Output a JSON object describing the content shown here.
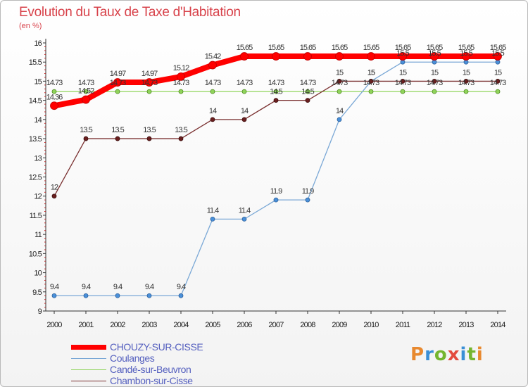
{
  "title": "Evolution du Taux de Taxe d'Habitation",
  "subtitle": "(en %)",
  "logo": {
    "letters": [
      "P",
      "r",
      "o",
      "x",
      "i",
      "t",
      "i"
    ],
    "colors": [
      "#e8892f",
      "#3a8fd6",
      "#74b52f",
      "#e34b3f",
      "#3a8fd6",
      "#74b52f",
      "#e8892f"
    ]
  },
  "chart_data": {
    "type": "line",
    "x": [
      "2000",
      "2001",
      "2002",
      "2003",
      "2004",
      "2005",
      "2006",
      "2007",
      "2008",
      "2009",
      "2010",
      "2011",
      "2012",
      "2013",
      "2014"
    ],
    "ylim": [
      9,
      16
    ],
    "yticks": [
      "9",
      "9.5",
      "10",
      "10.5",
      "11",
      "11.5",
      "12",
      "12.5",
      "13",
      "13.5",
      "14",
      "14.5",
      "15",
      "15.5",
      "16"
    ],
    "grid": false,
    "legend_position": "bottom-left",
    "series": [
      {
        "name": "CHOUZY-SUR-CISSE",
        "color": "#ff0000",
        "values": [
          14.36,
          14.52,
          14.97,
          14.97,
          15.12,
          15.42,
          15.65,
          15.65,
          15.65,
          15.65,
          15.65,
          15.65,
          15.65,
          15.65,
          15.65
        ],
        "labels": [
          "14.36",
          "14.52",
          "14.97",
          "14.97",
          "15.12",
          "15.42",
          "15.65",
          "15.65",
          "15.65",
          "15.65",
          "15.65",
          "15.65",
          "15.65",
          "15.65",
          "15.65"
        ]
      },
      {
        "name": "Coulanges",
        "color": "#7aa8d6",
        "values": [
          9.4,
          9.4,
          9.4,
          9.4,
          9.4,
          11.4,
          11.4,
          11.9,
          11.9,
          14,
          15,
          15.5,
          15.5,
          15.5,
          15.5
        ],
        "labels": [
          "9.4",
          "9.4",
          "9.4",
          "9.4",
          "9.4",
          "11.4",
          "11.4",
          "11.9",
          "11.9",
          "14",
          "15",
          "15.5",
          "15.5",
          "15.5",
          "15.5"
        ]
      },
      {
        "name": "Candé-sur-Beuvron",
        "color": "#8fd35a",
        "values": [
          14.73,
          14.73,
          14.73,
          14.73,
          14.73,
          14.73,
          14.73,
          14.73,
          14.73,
          14.73,
          14.73,
          14.73,
          14.73,
          14.73,
          14.73
        ],
        "labels": [
          "14.73",
          "14.73",
          "14.73",
          "14.73",
          "14.73",
          "14.73",
          "14.73",
          "14.73",
          "14.73",
          "14.73",
          "14.73",
          "14.73",
          "14.73",
          "14.73",
          "14.73"
        ]
      },
      {
        "name": "Chambon-sur-Cisse",
        "color": "#7a3030",
        "values": [
          12,
          13.5,
          13.5,
          13.5,
          13.5,
          14,
          14,
          14.5,
          14.5,
          15,
          15,
          15,
          15,
          15,
          15
        ],
        "labels": [
          "12",
          "13.5",
          "13.5",
          "13.5",
          "13.5",
          "14",
          "14",
          "14.5",
          "14.5",
          "15",
          "15",
          "15",
          "15",
          "15",
          "15"
        ]
      }
    ]
  }
}
